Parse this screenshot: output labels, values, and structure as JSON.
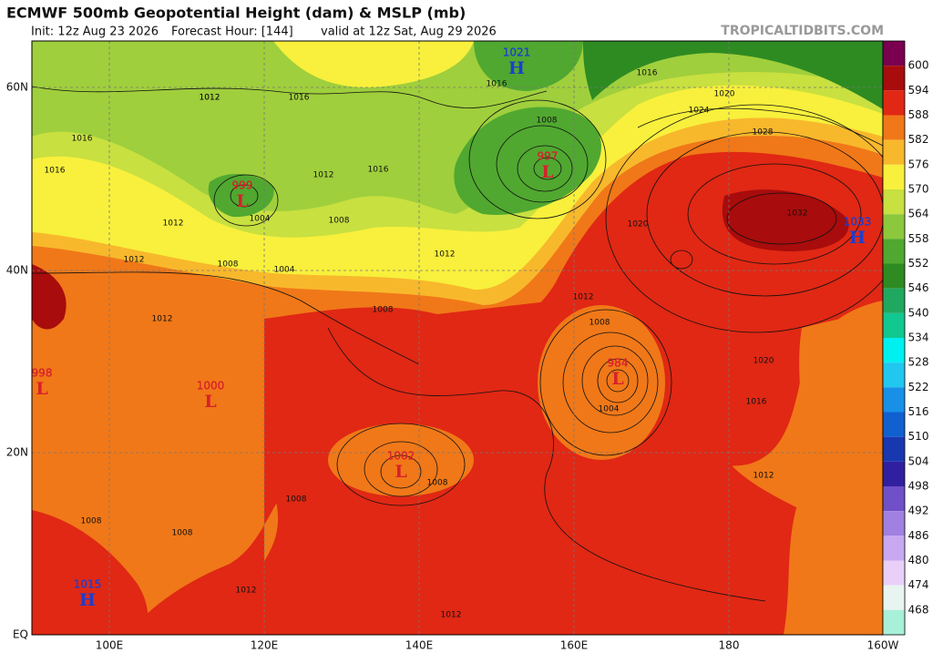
{
  "header": {
    "title": "ECMWF 500mb Geopotential Height (dam) & MSLP (mb)",
    "subtitle": [
      "Init: 12z Aug 23 2026",
      "Forecast Hour: [144]",
      "valid at 12z Sat, Aug 29 2026"
    ],
    "watermark": "TROPICALTIDBITS.COM"
  },
  "map": {
    "lat_labels": [
      "60N",
      "40N",
      "20N",
      "EQ"
    ],
    "lon_labels": [
      "100E",
      "120E",
      "140E",
      "160E",
      "180",
      "160W"
    ],
    "centers": [
      {
        "letter": "H",
        "pressure": "1021",
        "color": "#1a3fd0"
      },
      {
        "letter": "L",
        "pressure": "997",
        "color": "#d8202c"
      },
      {
        "letter": "L",
        "pressure": "999",
        "color": "#d8202c"
      },
      {
        "letter": "L",
        "pressure": "998",
        "color": "#d8202c"
      },
      {
        "letter": "L",
        "pressure": "1000",
        "color": "#d8202c"
      },
      {
        "letter": "H",
        "pressure": "1033",
        "color": "#1a3fd0"
      },
      {
        "letter": "L",
        "pressure": "984",
        "color": "#d8202c"
      },
      {
        "letter": "L",
        "pressure": "1002",
        "color": "#d8202c"
      },
      {
        "letter": "H",
        "pressure": "1015",
        "color": "#1a3fd0"
      }
    ],
    "isobar_labels": [
      "1012",
      "1016",
      "1016",
      "1012",
      "1016",
      "1012",
      "1012",
      "1004",
      "1008",
      "1016",
      "1016",
      "1008",
      "1012",
      "1012",
      "1004",
      "1008",
      "1020",
      "1024",
      "1028",
      "1032",
      "1020",
      "1012",
      "1008",
      "1020",
      "1016",
      "1004",
      "1008",
      "1012",
      "1008",
      "1012",
      "1008",
      "1012",
      "1008",
      "1016",
      "1008",
      "1012"
    ]
  },
  "colorbar": {
    "top_color": "#7a0050",
    "levels": [
      {
        "label": "600",
        "color": "#a80c0c"
      },
      {
        "label": "594",
        "color": "#e02814"
      },
      {
        "label": "588",
        "color": "#f07818"
      },
      {
        "label": "582",
        "color": "#f8b82c"
      },
      {
        "label": "576",
        "color": "#f8f03c"
      },
      {
        "label": "570",
        "color": "#c8e040"
      },
      {
        "label": "564",
        "color": "#8cc83c"
      },
      {
        "label": "558",
        "color": "#50a830"
      },
      {
        "label": "552",
        "color": "#2e8b22"
      },
      {
        "label": "546",
        "color": "#20a860"
      },
      {
        "label": "540",
        "color": "#10c890"
      },
      {
        "label": "534",
        "color": "#00f0f0"
      },
      {
        "label": "528",
        "color": "#20c8f0"
      },
      {
        "label": "522",
        "color": "#1890e8"
      },
      {
        "label": "516",
        "color": "#1060d0"
      },
      {
        "label": "510",
        "color": "#1838b0"
      },
      {
        "label": "504",
        "color": "#3020a0"
      },
      {
        "label": "498",
        "color": "#7050c8"
      },
      {
        "label": "492",
        "color": "#a080e0"
      },
      {
        "label": "486",
        "color": "#c8a8f0"
      },
      {
        "label": "480",
        "color": "#e8d0f8"
      },
      {
        "label": "474",
        "color": "#e8f4f0"
      },
      {
        "label": "468",
        "color": "#a8f0d8"
      }
    ]
  }
}
